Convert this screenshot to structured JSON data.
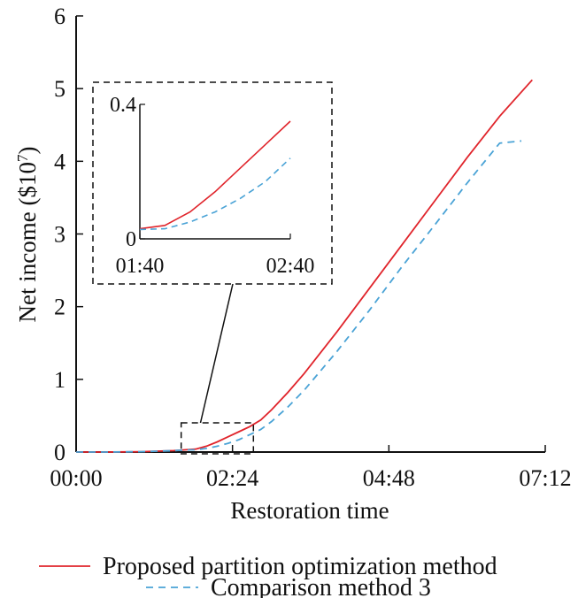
{
  "chart_data": {
    "type": "line",
    "xlabel": "Restoration time",
    "ylabel_main": "Net income ($10",
    "ylabel_exp": "7",
    "ylabel_close": ")",
    "ylim": [
      0,
      6
    ],
    "yticks": [
      "0",
      "1",
      "2",
      "3",
      "4",
      "5",
      "6"
    ],
    "xticks": [
      "00:00",
      "02:24",
      "04:48",
      "07:12"
    ],
    "xtick_minutes": [
      0,
      144,
      288,
      432
    ],
    "xlim_minutes": [
      0,
      432
    ],
    "grid": false,
    "legend_position": "bottom",
    "series": [
      {
        "name": "Proposed partition optimization method",
        "color": "#e0242b",
        "dash": "solid",
        "x_minutes": [
          0,
          30,
          60,
          90,
          100,
          110,
          120,
          130,
          140,
          150,
          160,
          170,
          180,
          195,
          210,
          240,
          270,
          300,
          330,
          360,
          390,
          420
        ],
        "y": [
          0,
          0,
          0.005,
          0.02,
          0.03,
          0.04,
          0.08,
          0.14,
          0.21,
          0.28,
          0.35,
          0.44,
          0.58,
          0.82,
          1.08,
          1.65,
          2.25,
          2.85,
          3.45,
          4.05,
          4.62,
          5.12
        ]
      },
      {
        "name": "Comparison method 3",
        "color": "#4aa3d6",
        "dash": "dashed",
        "x_minutes": [
          0,
          30,
          60,
          90,
          100,
          110,
          120,
          130,
          140,
          150,
          160,
          170,
          180,
          195,
          210,
          240,
          270,
          300,
          330,
          360,
          390,
          410
        ],
        "y": [
          0,
          0,
          0.005,
          0.02,
          0.028,
          0.03,
          0.05,
          0.08,
          0.12,
          0.17,
          0.24,
          0.31,
          0.42,
          0.62,
          0.85,
          1.38,
          1.95,
          2.55,
          3.12,
          3.7,
          4.25,
          4.28
        ]
      }
    ],
    "inset": {
      "xlim_minutes": [
        100,
        160
      ],
      "xticks": [
        "01:40",
        "02:40"
      ],
      "ylim": [
        0,
        0.4
      ],
      "yticks": [
        "0",
        "0.4"
      ],
      "zoom_box": {
        "x_minutes": [
          100,
          160
        ],
        "y": [
          0,
          0.4
        ]
      }
    }
  }
}
